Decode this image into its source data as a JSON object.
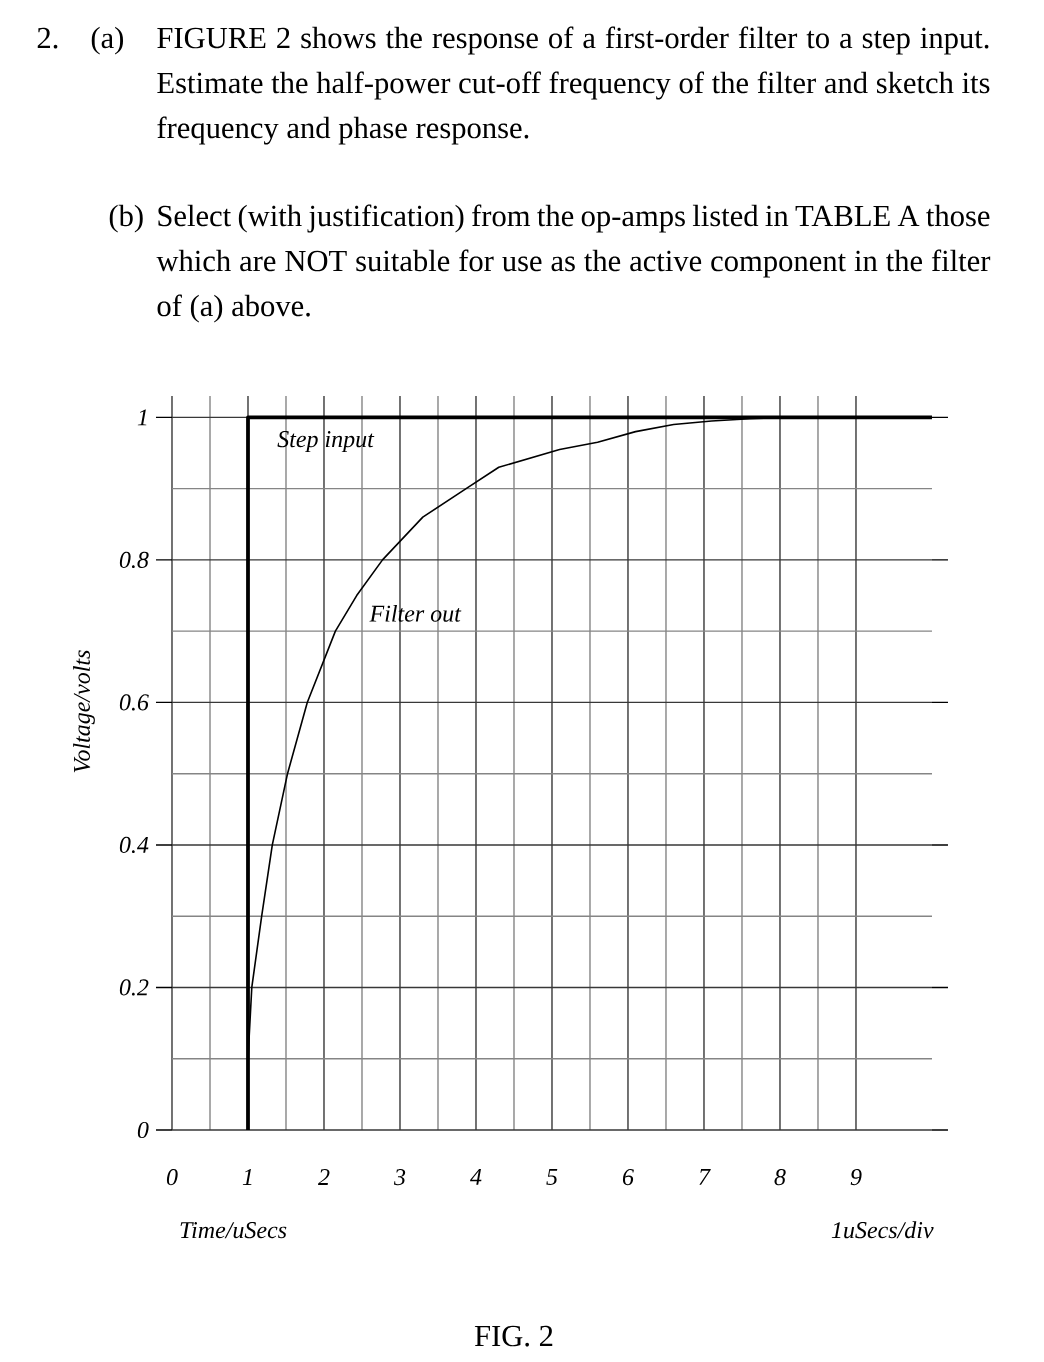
{
  "chart_data": {
    "type": "line",
    "annotations": [
      "2.",
      "(a)",
      "FIGURE 2 shows the response of a first-order filter to a step input. Estimate the half-power cut-off frequency of the filter and sketch its frequency and phase response.",
      "(b)",
      "Select (with justification) from the op-amps listed in TABLE A those which are NOT suitable for use as the active component in the filter of (a) above.",
      "1uSecs/div",
      "FIG. 2"
    ],
    "xlabel": "Time/uSecs",
    "ylabel": "Voltage/volts",
    "xlim": [
      0,
      10
    ],
    "ylim": [
      0,
      1.03
    ],
    "xticks": [
      0,
      1,
      2,
      3,
      4,
      5,
      6,
      7,
      8,
      9
    ],
    "yticks": [
      0,
      0.2,
      0.4,
      0.6,
      0.8,
      1
    ],
    "grid": true,
    "series": [
      {
        "name": "Step input",
        "color": "#000000",
        "x": [
          1,
          1,
          10
        ],
        "values": [
          0,
          1,
          1
        ]
      },
      {
        "name": "Filter out",
        "color": "#000000",
        "x": [
          1,
          1.05,
          1.18,
          1.32,
          1.52,
          1.78,
          2.15,
          2.43,
          2.77,
          3.3,
          3.87,
          4.3,
          5.1,
          5.6,
          6.1,
          6.6,
          7.1,
          7.6,
          8.0
        ],
        "values": [
          0.1,
          0.2,
          0.3,
          0.4,
          0.5,
          0.6,
          0.7,
          0.75,
          0.8,
          0.86,
          0.9,
          0.93,
          0.955,
          0.965,
          0.98,
          0.99,
          0.995,
          0.998,
          1
        ]
      }
    ]
  }
}
